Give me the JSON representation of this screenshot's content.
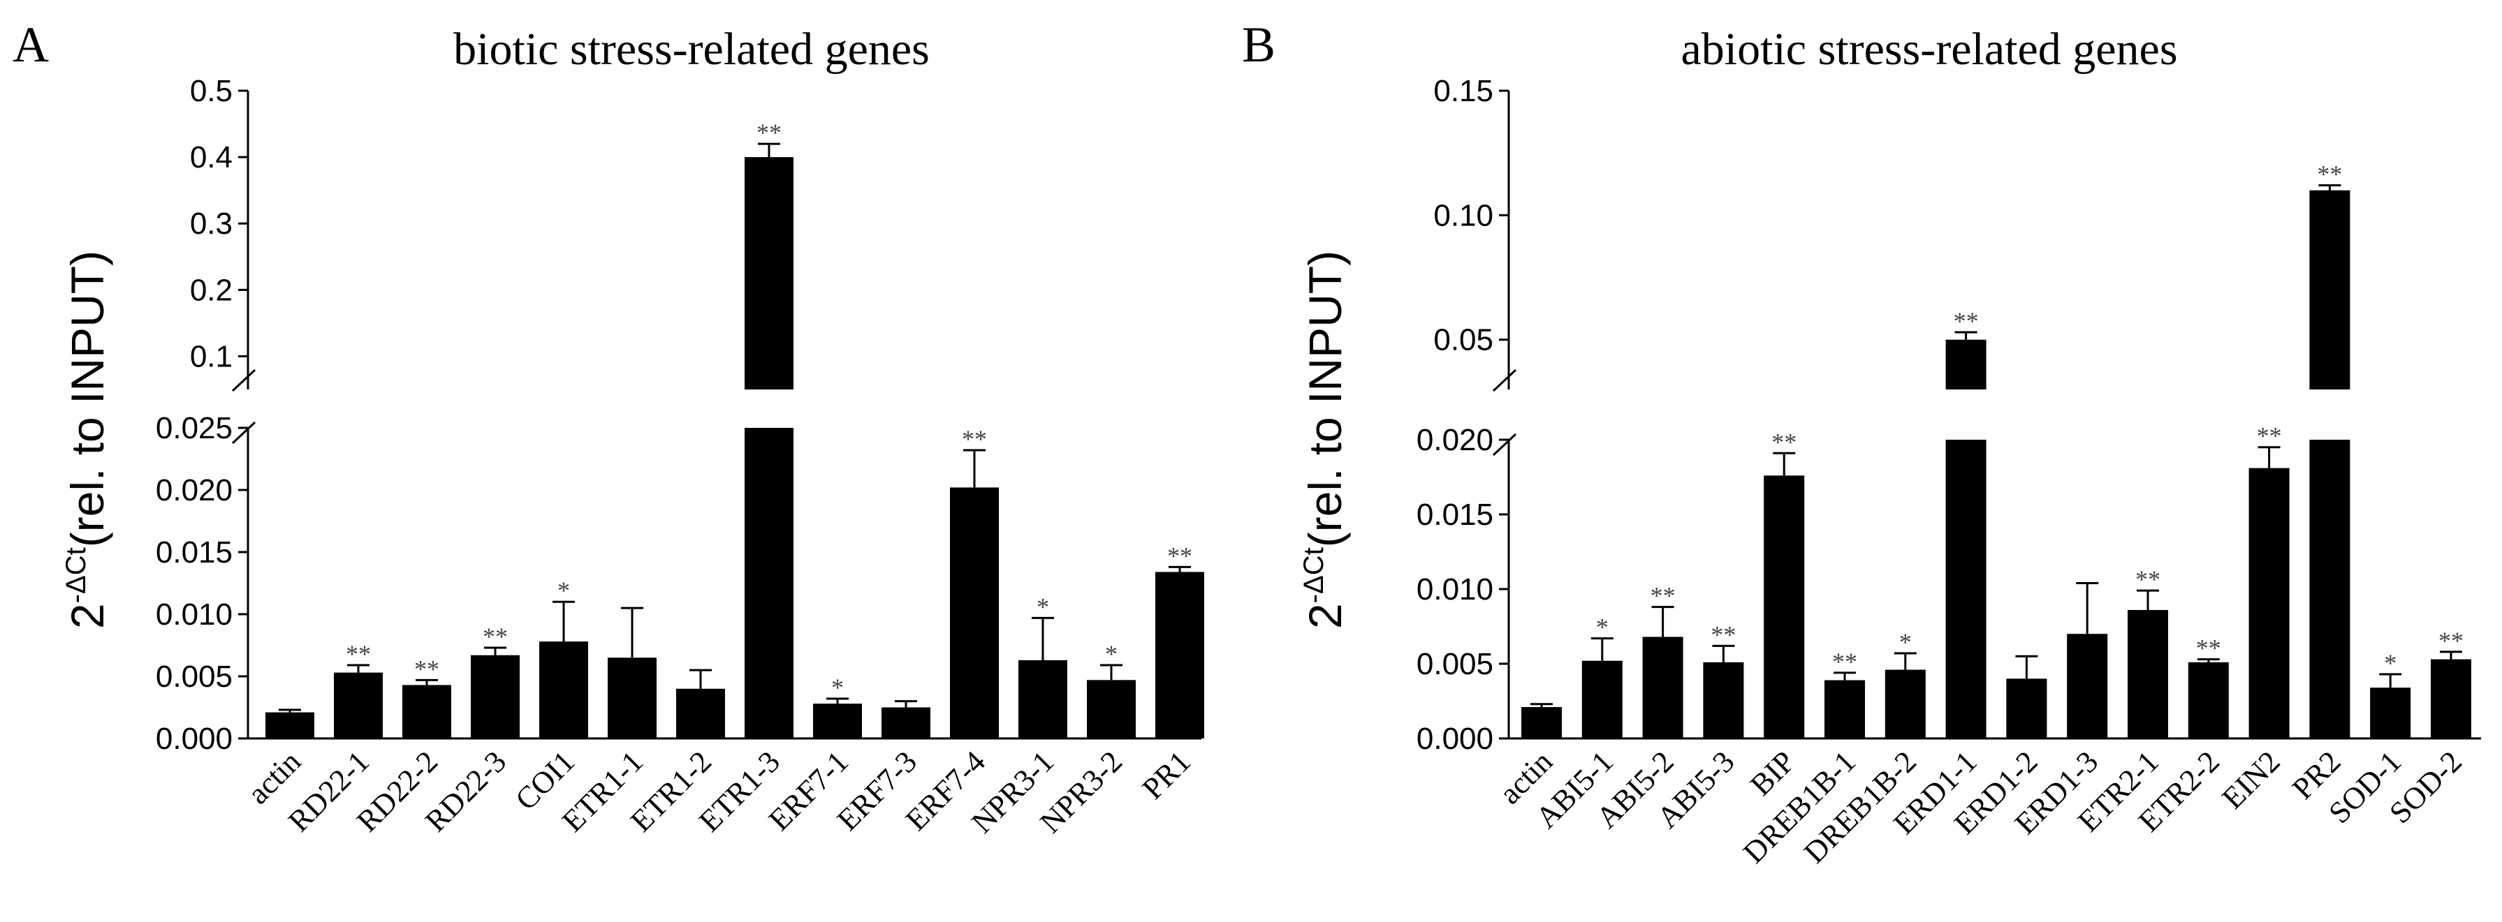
{
  "chart_data": [
    {
      "type": "bar",
      "panel_label": "A",
      "title": "biotic stress-related genes",
      "ylabel_prefix": "2",
      "ylabel_sup": "-ΔCt",
      "ylabel_text": "(rel. to INPUT)",
      "xlabel": "",
      "axis_break": true,
      "lower_ylim": [
        0,
        0.025
      ],
      "upper_ylim": [
        0.05,
        0.5
      ],
      "lower_ticks": [
        "0.000",
        "0.005",
        "0.010",
        "0.015",
        "0.020",
        "0.025"
      ],
      "lower_tick_values": [
        0,
        0.005,
        0.01,
        0.015,
        0.02,
        0.025
      ],
      "upper_ticks": [
        "0.1",
        "0.2",
        "0.3",
        "0.4",
        "0.5"
      ],
      "upper_tick_values": [
        0.1,
        0.2,
        0.3,
        0.4,
        0.5
      ],
      "categories": [
        "actin",
        "RD22-1",
        "RD22-2",
        "RD22-3",
        "COI1",
        "ETR1-1",
        "ETR1-2",
        "ETR1-3",
        "ERF7-1",
        "ERF7-3",
        "ERF7-4",
        "NPR3-1",
        "NPR3-2",
        "PR1"
      ],
      "values": [
        0.0021,
        0.0053,
        0.0043,
        0.0067,
        0.0078,
        0.0065,
        0.004,
        0.4,
        0.0028,
        0.0025,
        0.0202,
        0.0063,
        0.0047,
        0.0134
      ],
      "errors": [
        0.0002,
        0.0006,
        0.0004,
        0.0006,
        0.0032,
        0.004,
        0.0015,
        0.02,
        0.0004,
        0.0005,
        0.003,
        0.0034,
        0.0012,
        0.0004
      ],
      "significance": [
        "",
        "**",
        "**",
        "**",
        "*",
        "",
        "",
        "**",
        "*",
        "",
        "**",
        "*",
        "*",
        "**"
      ]
    },
    {
      "type": "bar",
      "panel_label": "B",
      "title": "abiotic stress-related genes",
      "ylabel_prefix": "2",
      "ylabel_sup": "-ΔCt",
      "ylabel_text": "(rel. to INPUT)",
      "xlabel": "",
      "axis_break": true,
      "lower_ylim": [
        0,
        0.02
      ],
      "upper_ylim": [
        0.03,
        0.15
      ],
      "lower_ticks": [
        "0.000",
        "0.005",
        "0.010",
        "0.015",
        "0.020"
      ],
      "lower_tick_values": [
        0,
        0.005,
        0.01,
        0.015,
        0.02
      ],
      "upper_ticks": [
        "0.05",
        "0.10",
        "0.15"
      ],
      "upper_tick_values": [
        0.05,
        0.1,
        0.15
      ],
      "categories": [
        "actin",
        "ABI5-1",
        "ABI5-2",
        "ABI5-3",
        "BIP",
        "DREB1B-1",
        "DREB1B-2",
        "ERD1-1",
        "ERD1-2",
        "ERD1-3",
        "ETR2-1",
        "ETR2-2",
        "EIN2",
        "PR2",
        "SOD-1",
        "SOD-2"
      ],
      "values": [
        0.0021,
        0.0052,
        0.0068,
        0.0051,
        0.0176,
        0.0039,
        0.0046,
        0.05,
        0.004,
        0.007,
        0.0086,
        0.0051,
        0.0181,
        0.11,
        0.0034,
        0.0053
      ],
      "errors": [
        0.0002,
        0.0015,
        0.002,
        0.0011,
        0.0015,
        0.0005,
        0.0011,
        0.003,
        0.0015,
        0.0034,
        0.0013,
        0.0002,
        0.0014,
        0.002,
        0.0009,
        0.0005
      ],
      "significance": [
        "",
        "*",
        "**",
        "**",
        "**",
        "**",
        "*",
        "**",
        "",
        "",
        "**",
        "**",
        "**",
        "**",
        "*",
        "**"
      ]
    }
  ]
}
